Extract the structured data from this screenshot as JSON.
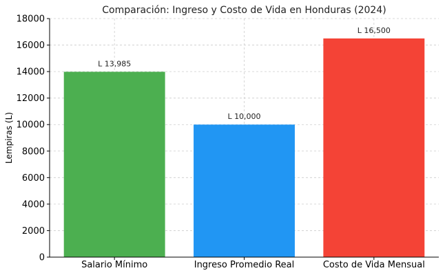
{
  "chart_data": {
    "type": "bar",
    "title": "Comparación: Ingreso y Costo de Vida en Honduras (2024)",
    "xlabel": "",
    "ylabel": "Lempiras (L)",
    "ylim": [
      0,
      18000
    ],
    "yticks": [
      0,
      2000,
      4000,
      6000,
      8000,
      10000,
      12000,
      14000,
      16000,
      18000
    ],
    "grid": true,
    "categories": [
      "Salario Mínimo",
      "Ingreso Promedio Real",
      "Costo de Vida Mensual"
    ],
    "values": [
      13985,
      10000,
      16500
    ],
    "data_labels": [
      "L 13,985",
      "L 10,000",
      "L 16,500"
    ],
    "colors": [
      "#4caf50",
      "#2196f3",
      "#f44336"
    ]
  }
}
